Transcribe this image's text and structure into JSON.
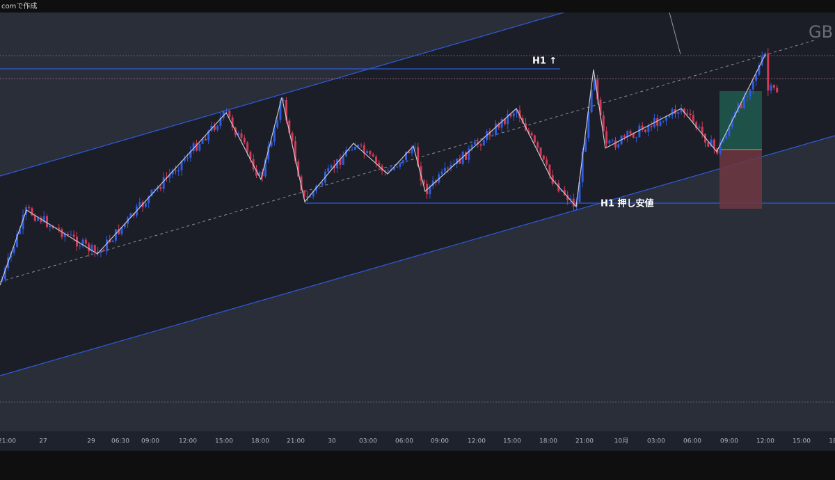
{
  "header": {
    "credit": "comで作成"
  },
  "chart": {
    "watermark": "GB",
    "annotations": [
      "H1 ↑",
      "H1 押し安値"
    ],
    "time_axis": [
      "21:00",
      "27",
      "29",
      "06:30",
      "09:00",
      "12:00",
      "15:00",
      "18:00",
      "21:00",
      "30",
      "03:00",
      "06:00",
      "09:00",
      "12:00",
      "15:00",
      "18:00",
      "21:00",
      "10月",
      "03:00",
      "06:00",
      "09:00",
      "12:00",
      "15:00",
      "18"
    ]
  }
}
